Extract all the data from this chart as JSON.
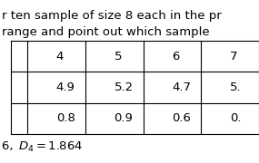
{
  "title_line1": "r ten sample of size 8 each in the pr",
  "title_line2": "range and point out which sample",
  "col_headers": [
    "4",
    "5",
    "6",
    "7"
  ],
  "row1": [
    "4.9",
    "5.2",
    "4.7",
    "5."
  ],
  "row2": [
    "0.8",
    "0.9",
    "0.6",
    "0."
  ],
  "footer_text": "6,  ",
  "footer_math": "$D_4 = 1.864$",
  "bg_color": "#ffffff",
  "text_color": "#000000",
  "table_line_color": "#000000",
  "fontsize_header": 9.5,
  "fontsize_table": 9.5,
  "fontsize_footer": 9.5
}
